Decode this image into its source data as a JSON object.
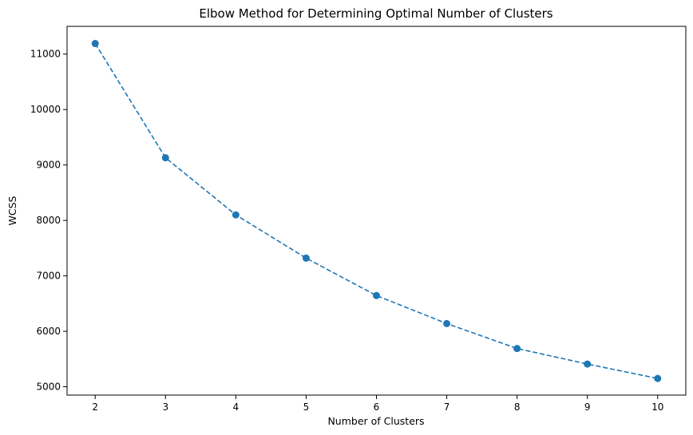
{
  "chart_data": {
    "type": "line",
    "title": "Elbow Method for Determining Optimal Number of Clusters",
    "xlabel": "Number of Clusters",
    "ylabel": "WCSS",
    "x": [
      2,
      3,
      4,
      5,
      6,
      7,
      8,
      9,
      10
    ],
    "series": [
      {
        "values": [
          11190,
          9130,
          8100,
          7320,
          6645,
          6140,
          5690,
          5410,
          5150
        ],
        "color": "#1f77b4",
        "line_style": "dashed",
        "marker": "circle"
      }
    ],
    "xlim": [
      1.6,
      10.4
    ],
    "ylim": [
      4850,
      11500
    ],
    "x_ticks": [
      "2",
      "3",
      "4",
      "5",
      "6",
      "7",
      "8",
      "9",
      "10"
    ],
    "y_ticks": [
      "5000",
      "6000",
      "7000",
      "8000",
      "9000",
      "10000",
      "11000"
    ],
    "grid": false,
    "legend": "none"
  }
}
